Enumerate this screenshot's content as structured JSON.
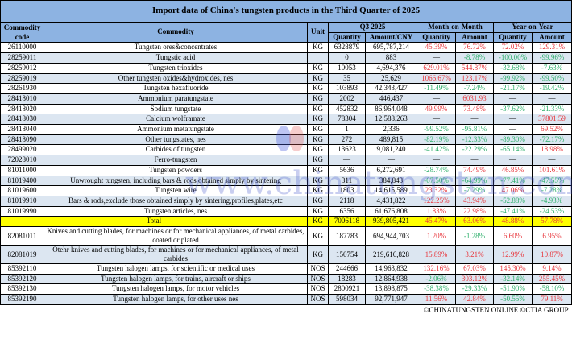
{
  "title": "Import data of China's tungsten products in the Third Quarter of 2025",
  "headers": {
    "code": "Commodity code",
    "commodity": "Commodity",
    "unit": "Unit",
    "q3": "Q3 2025",
    "mom": "Month-on-Month",
    "yoy": "Year-on-Year",
    "quantity": "Quantity",
    "amount_cny": "Amount/CNY",
    "amount": "Amount"
  },
  "rows": [
    [
      "26110000",
      "Tungsten ores&concentrates",
      "KG",
      "6328879",
      "695,787,214",
      "45.39%",
      "76.72%",
      "72.02%",
      "129.31%"
    ],
    [
      "28259011",
      "Tungstic acid",
      "",
      "0",
      "883",
      "—",
      "-8.78%",
      "-100.00%",
      "-99.96%"
    ],
    [
      "28259012",
      "Tungsten trioxides",
      "KG",
      "10053",
      "4,694,376",
      "629.01%",
      "544.87%",
      "-32.68%",
      "-7.63%"
    ],
    [
      "28259019",
      "Other tungsten oxides&hydroxides, nes",
      "KG",
      "35",
      "25,629",
      "1066.67%",
      "123.17%",
      "-99.92%",
      "-99.50%"
    ],
    [
      "28261930",
      "Tungsten hexafluoride",
      "KG",
      "103893",
      "42,343,427",
      "-11.49%",
      "-7.24%",
      "-21.17%",
      "-19.42%"
    ],
    [
      "28418010",
      "Ammonium paratungstate",
      "KG",
      "2002",
      "446,437",
      "—",
      "6031.93",
      "—",
      "—"
    ],
    [
      "28418020",
      "Sodium tungstate",
      "KG",
      "452832",
      "86,964,048",
      "49.99%",
      "73.48%",
      "-37.62%",
      "-21.33%"
    ],
    [
      "28418030",
      "Calcium wolframate",
      "KG",
      "78304",
      "12,588,263",
      "—",
      "—",
      "—",
      "37801.59"
    ],
    [
      "28418040",
      "Ammonium metatungstate",
      "KG",
      "1",
      "2,336",
      "-99.52%",
      "-95.81%",
      "—",
      "69.52%"
    ],
    [
      "28418090",
      "Other tungstates, nes",
      "KG",
      "272",
      "489,815",
      "-82.19%",
      "-12.33%",
      "-89.30%",
      "-72.17%"
    ],
    [
      "28499020",
      "Carbides of tungsten",
      "KG",
      "13623",
      "9,081,240",
      "-41.42%",
      "-22.29%",
      "-65.14%",
      "18.98%"
    ],
    [
      "72028010",
      "Ferro-tungsten",
      "KG",
      "—",
      "—",
      "—",
      "—",
      "—",
      "—"
    ],
    [
      "81011000",
      "Tungsten powders",
      "KG",
      "5636",
      "6,272,691",
      "-28.74%",
      "74.49%",
      "46.85%",
      "101.61%"
    ],
    [
      "81019400",
      "Unwrought tungsten, including bars & rods obtained simply by sintering",
      "KG",
      "311",
      "384,843",
      "-67.50%",
      "-64.99%",
      "-77.41%",
      "-47.55%"
    ],
    [
      "81019600",
      "Tungsten wire",
      "KG",
      "1803",
      "14,615,589",
      "23.32%",
      "-7.29%",
      "47.06%",
      "-7.28%"
    ],
    [
      "81019910",
      "Bars & rods,exclude those obtained simply by sintering,profiles,plates,etc",
      "KG",
      "2118",
      "4,431,822",
      "122.25%",
      "43.94%",
      "-52.88%",
      "-4.93%"
    ],
    [
      "81019990",
      "Tungsten articles, nes",
      "KG",
      "6356",
      "61,676,808",
      "1.83%",
      "22.98%",
      "-47.41%",
      "-24.53%"
    ],
    [
      "",
      "Total",
      "KG",
      "7006118",
      "939,805,421",
      "45.47%",
      "63.06%",
      "48.88%",
      "57.78%"
    ],
    [
      "82081011",
      "Knives and cutting blades, for machines or for mechanical appliances, of metal carbides, coated or plated",
      "KG",
      "187783",
      "694,944,703",
      "1.20%",
      "-1.28%",
      "6.60%",
      "6.95%"
    ],
    [
      "82081019",
      "Otehr knives and cutting blades, for machines or for mechanical appliances, of metal carbides",
      "KG",
      "150754",
      "219,616,828",
      "15.89%",
      "3.21%",
      "12.99%",
      "10.87%"
    ],
    [
      "85392110",
      "Tungsten halogen lamps, for scientific or medical uses",
      "NOS",
      "244666",
      "14,963,832",
      "132.16%",
      "67.03%",
      "145.30%",
      "9.14%"
    ],
    [
      "85392120",
      "Tungsten halogen lamps, for trains, aircraft or ships",
      "NOS",
      "18283",
      "12,864,938",
      "-2.06%",
      "303.12%",
      "-32.14%",
      "255.45%"
    ],
    [
      "85392130",
      "Tungsten halogen lamps, for motor vehicles",
      "NOS",
      "2800921",
      "13,898,875",
      "-38.38%",
      "-29.33%",
      "-51.90%",
      "-58.10%"
    ],
    [
      "85392190",
      "Tungsten halogen lamps, for other uses nes",
      "NOS",
      "598034",
      "92,771,947",
      "11.56%",
      "42.84%",
      "-50.55%",
      "79.11%"
    ]
  ],
  "footer": "©CHINATUNGSTEN ONLINE  ©CTIA GROUP",
  "watermark": "www.chinatungsten.com",
  "logo_text": "CTOMS",
  "colors": {
    "header_bg": "#8DB3E2",
    "alt_row": "#DCE6F1",
    "total_row": "#FFFF00",
    "positive": "#E8353B",
    "negative": "#2EAF6B"
  }
}
